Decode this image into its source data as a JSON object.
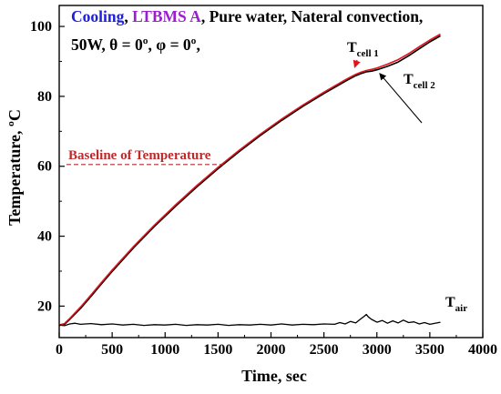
{
  "chart_data": {
    "type": "line",
    "title_parts": [
      {
        "text": "Cooling",
        "color": "#2020d8"
      },
      {
        "text": ", ",
        "color": "#000000"
      },
      {
        "text": "LTBMS A",
        "color": "#9b1fd0"
      },
      {
        "text": ", Pure water, Nateral convection,",
        "color": "#000000"
      }
    ],
    "subtitle": "50W, θ = 0º, φ = 0º,",
    "xlabel": "Time, sec",
    "ylabel": "Temperature, ºC",
    "xlim": [
      0,
      4000
    ],
    "ylim": [
      11,
      106
    ],
    "xticks": [
      "0",
      "500",
      "1000",
      "1500",
      "2000",
      "2500",
      "3000",
      "3500",
      "4000"
    ],
    "yticks": [
      "20",
      "40",
      "60",
      "80",
      "100"
    ],
    "grid": false,
    "legend": "none",
    "baseline": {
      "label": "Baseline of Temperature",
      "y": 60.5,
      "x_range": [
        0,
        1550
      ],
      "color": "#c0282a"
    },
    "series": [
      {
        "name": "T_cell 1",
        "color": "#000000",
        "x": [
          0,
          50,
          100,
          200,
          300,
          400,
          500,
          700,
          900,
          1100,
          1300,
          1500,
          1700,
          1900,
          2100,
          2300,
          2500,
          2700,
          2800,
          2850,
          2900,
          2950,
          3000,
          3100,
          3200,
          3300,
          3400,
          3500,
          3600
        ],
        "y": [
          14.5,
          14.8,
          16.2,
          19.3,
          22.8,
          26.4,
          29.9,
          36.6,
          42.8,
          48.6,
          54.1,
          59.3,
          64.2,
          68.8,
          73.1,
          77.1,
          80.8,
          84.3,
          85.9,
          86.5,
          87.0,
          87.2,
          87.6,
          88.6,
          89.8,
          91.6,
          93.6,
          95.6,
          97.3
        ]
      },
      {
        "name": "T_cell 2",
        "color": "#e0141e",
        "x": [
          0,
          50,
          100,
          200,
          300,
          400,
          500,
          700,
          900,
          1100,
          1300,
          1500,
          1700,
          1900,
          2100,
          2300,
          2500,
          2700,
          2800,
          2850,
          2900,
          2950,
          3000,
          3100,
          3200,
          3300,
          3400,
          3500,
          3600
        ],
        "y": [
          14.6,
          15.0,
          16.5,
          19.7,
          23.2,
          26.8,
          30.3,
          37.0,
          43.2,
          49.0,
          54.5,
          59.7,
          64.6,
          69.2,
          73.5,
          77.5,
          81.2,
          84.7,
          86.3,
          86.9,
          87.4,
          87.7,
          88.1,
          89.2,
          90.5,
          92.2,
          94.2,
          96.1,
          97.8
        ]
      },
      {
        "name": "T_air",
        "color": "#000000",
        "x": [
          0,
          50,
          100,
          150,
          200,
          300,
          400,
          500,
          600,
          700,
          800,
          900,
          1000,
          1100,
          1200,
          1300,
          1400,
          1500,
          1600,
          1700,
          1800,
          1900,
          2000,
          2100,
          2200,
          2300,
          2400,
          2500,
          2600,
          2650,
          2700,
          2750,
          2800,
          2850,
          2880,
          2900,
          2920,
          2950,
          3000,
          3050,
          3100,
          3150,
          3200,
          3250,
          3300,
          3350,
          3400,
          3450,
          3500,
          3550,
          3600
        ],
        "y": [
          14.6,
          14.4,
          14.9,
          15.1,
          14.8,
          15.0,
          14.7,
          14.9,
          14.6,
          14.8,
          14.5,
          14.7,
          14.6,
          14.8,
          14.5,
          14.7,
          14.6,
          14.8,
          14.5,
          14.7,
          14.6,
          14.8,
          14.6,
          14.9,
          14.6,
          14.8,
          14.7,
          14.9,
          14.8,
          15.3,
          14.9,
          15.6,
          15.2,
          16.4,
          17.1,
          17.6,
          16.9,
          16.2,
          15.4,
          15.9,
          15.1,
          15.8,
          15.2,
          16.0,
          15.3,
          15.5,
          14.9,
          15.3,
          14.8,
          15.1,
          15.4
        ]
      }
    ],
    "annotations": [
      {
        "base": "T",
        "sub": "cell 1",
        "at_x": 2790,
        "at_y": 87.5,
        "arrow_color": "#e0141e"
      },
      {
        "base": "T",
        "sub": "cell 2",
        "at_x": 3000,
        "at_y": 87.6,
        "arrow_color": "#000000"
      },
      {
        "base": "T",
        "sub": "air",
        "at_x": 3620,
        "at_y": 15.4
      }
    ]
  }
}
